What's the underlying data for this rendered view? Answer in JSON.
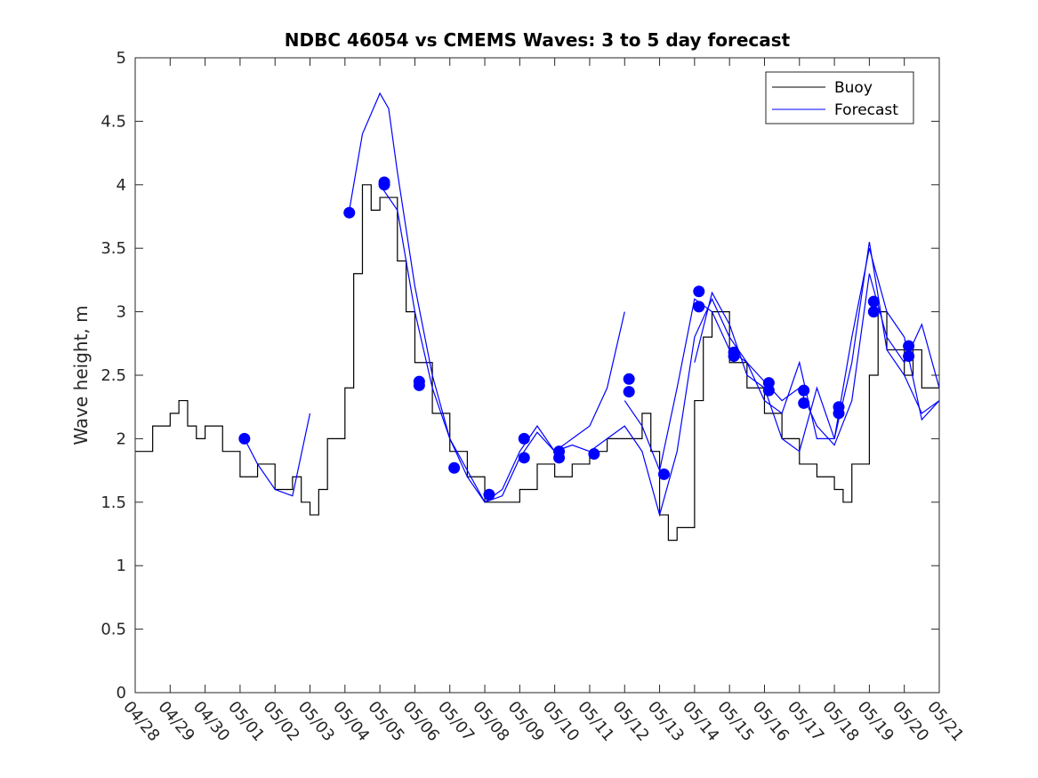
{
  "chart_data": {
    "type": "line",
    "title": "NDBC 46054 vs CMEMS Waves: 3 to 5 day forecast",
    "xlabel": "",
    "ylabel": "Wave height, m",
    "xlim": [
      "04/28",
      "05/21"
    ],
    "ylim": [
      0,
      5
    ],
    "x_tick_labels": [
      "04/28",
      "04/29",
      "04/30",
      "05/01",
      "05/02",
      "05/03",
      "05/04",
      "05/05",
      "05/06",
      "05/07",
      "05/08",
      "05/09",
      "05/10",
      "05/11",
      "05/12",
      "05/13",
      "05/14",
      "05/15",
      "05/16",
      "05/17",
      "05/18",
      "05/19",
      "05/20",
      "05/21"
    ],
    "y_ticks": [
      0,
      0.5,
      1,
      1.5,
      2,
      2.5,
      3,
      3.5,
      4,
      4.5,
      5
    ],
    "y_tick_labels": [
      "0",
      "0.5",
      "1",
      "1.5",
      "2",
      "2.5",
      "3",
      "3.5",
      "4",
      "4.5",
      "5"
    ],
    "legend": {
      "position": "top-right",
      "entries": [
        "Buoy",
        "Forecast"
      ]
    },
    "colors": {
      "buoy": "#000000",
      "forecast": "#0000ff"
    },
    "series": [
      {
        "name": "Buoy",
        "x": [
          "04/28 00:00",
          "04/28 12:00",
          "04/29 00:00",
          "04/29 06:00",
          "04/29 12:00",
          "04/29 18:00",
          "04/30 00:00",
          "04/30 12:00",
          "05/01 00:00",
          "05/01 12:00",
          "05/02 00:00",
          "05/02 12:00",
          "05/02 18:00",
          "05/03 00:00",
          "05/03 06:00",
          "05/03 12:00",
          "05/04 00:00",
          "05/04 06:00",
          "05/04 12:00",
          "05/04 18:00",
          "05/05 00:00",
          "05/05 12:00",
          "05/05 18:00",
          "05/06 00:00",
          "05/06 12:00",
          "05/07 00:00",
          "05/07 12:00",
          "05/08 00:00",
          "05/08 12:00",
          "05/09 00:00",
          "05/09 12:00",
          "05/10 00:00",
          "05/10 12:00",
          "05/11 00:00",
          "05/11 12:00",
          "05/12 00:00",
          "05/12 12:00",
          "05/12 18:00",
          "05/13 00:00",
          "05/13 06:00",
          "05/13 12:00",
          "05/14 00:00",
          "05/14 06:00",
          "05/14 12:00",
          "05/15 00:00",
          "05/15 12:00",
          "05/16 00:00",
          "05/16 12:00",
          "05/17 00:00",
          "05/17 12:00",
          "05/18 00:00",
          "05/18 06:00",
          "05/18 12:00",
          "05/19 00:00",
          "05/19 06:00",
          "05/19 12:00",
          "05/20 00:00",
          "05/20 06:00",
          "05/20 12:00",
          "05/21 00:00"
        ],
        "values": [
          1.9,
          2.1,
          2.2,
          2.3,
          2.1,
          2.0,
          2.1,
          1.9,
          1.7,
          1.8,
          1.6,
          1.7,
          1.5,
          1.4,
          1.6,
          2.0,
          2.4,
          3.3,
          4.0,
          3.8,
          3.9,
          3.4,
          3.0,
          2.6,
          2.2,
          1.9,
          1.7,
          1.5,
          1.5,
          1.6,
          1.8,
          1.7,
          1.8,
          1.9,
          2.0,
          2.0,
          2.2,
          1.9,
          1.4,
          1.2,
          1.3,
          2.3,
          2.8,
          3.0,
          2.6,
          2.4,
          2.2,
          2.0,
          1.8,
          1.7,
          1.6,
          1.5,
          1.8,
          2.5,
          3.0,
          2.7,
          2.5,
          2.7,
          2.4,
          2.4
        ]
      },
      {
        "name": "Forecast",
        "runs": [
          {
            "x": [
              "05/01 03:00",
              "05/01 12:00",
              "05/02 00:00",
              "05/02 12:00",
              "05/03 00:00"
            ],
            "values": [
              2.0,
              1.8,
              1.6,
              1.55,
              2.2
            ]
          },
          {
            "x": [
              "05/04 03:00",
              "05/04 12:00",
              "05/05 00:00",
              "05/05 06:00",
              "05/05 12:00",
              "05/06 00:00",
              "05/06 12:00",
              "05/07 00:00",
              "05/07 12:00",
              "05/08 00:00",
              "05/08 12:00",
              "05/09 00:00",
              "05/09 12:00",
              "05/10 00:00",
              "05/10 12:00",
              "05/11 00:00",
              "05/11 12:00",
              "05/12 00:00",
              "05/12 12:00",
              "05/13 00:00",
              "05/13 12:00",
              "05/14 00:00",
              "05/14 12:00",
              "05/15 00:00",
              "05/15 12:00",
              "05/16 00:00",
              "05/16 12:00",
              "05/17 00:00",
              "05/17 12:00",
              "05/18 00:00",
              "05/18 12:00",
              "05/19 00:00",
              "05/19 12:00",
              "05/20 00:00",
              "05/20 12:00",
              "05/21 00:00"
            ],
            "values": [
              3.8,
              4.4,
              4.72,
              4.6,
              4.1,
              3.2,
              2.5,
              2.0,
              1.75,
              1.5,
              1.55,
              1.85,
              2.05,
              1.9,
              1.95,
              1.9,
              2.0,
              2.1,
              1.9,
              1.4,
              1.9,
              2.8,
              3.1,
              2.8,
              2.6,
              2.45,
              2.3,
              2.4,
              2.1,
              1.95,
              2.3,
              3.3,
              2.8,
              2.6,
              2.9,
              2.4
            ]
          },
          {
            "x": [
              "05/05 00:00",
              "05/05 12:00",
              "05/06 00:00",
              "05/06 12:00",
              "05/07 00:00",
              "05/07 12:00",
              "05/08 00:00",
              "05/08 12:00",
              "05/09 00:00",
              "05/09 12:00",
              "05/10 00:00",
              "05/10 12:00",
              "05/11 00:00",
              "05/11 12:00",
              "05/12 00:00"
            ],
            "values": [
              4.0,
              3.8,
              3.0,
              2.4,
              2.0,
              1.7,
              1.5,
              1.6,
              1.9,
              2.1,
              1.9,
              2.0,
              2.1,
              2.4,
              3.0
            ]
          },
          {
            "x": [
              "05/12 00:00",
              "05/12 12:00",
              "05/13 00:00",
              "05/13 12:00",
              "05/14 00:00",
              "05/14 12:00",
              "05/15 00:00",
              "05/15 12:00",
              "05/16 00:00",
              "05/16 12:00",
              "05/17 00:00",
              "05/17 12:00",
              "05/18 00:00",
              "05/18 12:00",
              "05/19 00:00",
              "05/19 12:00",
              "05/20 00:00",
              "05/20 12:00",
              "05/21 00:00"
            ],
            "values": [
              2.3,
              2.1,
              1.75,
              2.4,
              3.1,
              3.0,
              2.7,
              2.6,
              2.3,
              2.2,
              2.6,
              2.0,
              2.0,
              2.6,
              3.55,
              2.7,
              2.5,
              2.2,
              2.3
            ]
          },
          {
            "x": [
              "05/14 00:00",
              "05/14 12:00",
              "05/15 00:00",
              "05/15 12:00",
              "05/16 00:00",
              "05/16 12:00",
              "05/17 00:00",
              "05/17 12:00",
              "05/18 00:00",
              "05/18 12:00",
              "05/19 00:00",
              "05/19 12:00",
              "05/20 00:00",
              "05/20 12:00",
              "05/21 00:00"
            ],
            "values": [
              2.6,
              3.15,
              2.9,
              2.5,
              2.4,
              2.0,
              1.9,
              2.4,
              2.0,
              2.8,
              3.5,
              3.0,
              2.8,
              2.15,
              2.3
            ]
          }
        ]
      }
    ],
    "forecast_markers": {
      "x": [
        "05/01 03:00",
        "05/04 03:00",
        "05/05 03:00",
        "05/05 03:00",
        "05/06 03:00",
        "05/06 03:00",
        "05/07 03:00",
        "05/08 03:00",
        "05/09 03:00",
        "05/09 03:00",
        "05/10 03:00",
        "05/10 03:00",
        "05/11 03:00",
        "05/12 03:00",
        "05/12 03:00",
        "05/13 03:00",
        "05/14 03:00",
        "05/14 03:00",
        "05/15 03:00",
        "05/15 03:00",
        "05/16 03:00",
        "05/16 03:00",
        "05/17 03:00",
        "05/17 03:00",
        "05/18 03:00",
        "05/18 03:00",
        "05/19 03:00",
        "05/19 03:00",
        "05/20 03:00",
        "05/20 03:00"
      ],
      "values": [
        2.0,
        3.78,
        4.0,
        4.02,
        2.45,
        2.42,
        1.77,
        1.56,
        2.0,
        1.85,
        1.9,
        1.85,
        1.88,
        2.47,
        2.37,
        1.72,
        3.16,
        3.04,
        2.68,
        2.65,
        2.44,
        2.38,
        2.38,
        2.28,
        2.25,
        2.2,
        3.08,
        3.0,
        2.73,
        2.65
      ]
    }
  }
}
